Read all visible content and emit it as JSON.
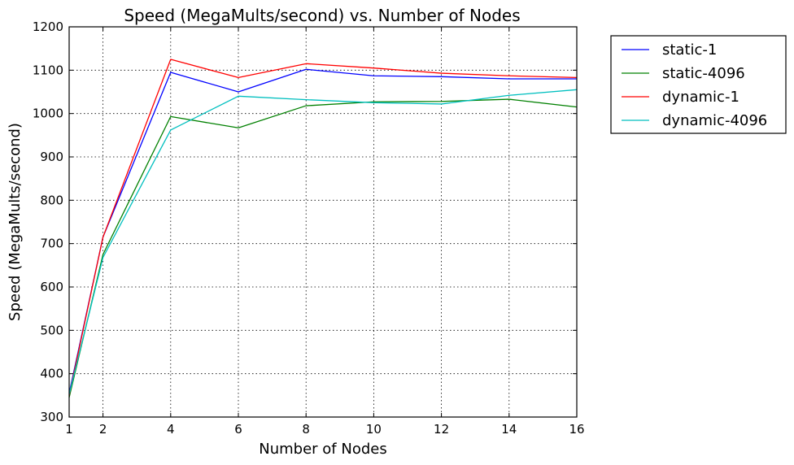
{
  "chart_data": {
    "type": "line",
    "title": "Speed (MegaMults/second) vs. Number of Nodes",
    "xlabel": "Number of Nodes",
    "ylabel": "Speed (MegaMults/second)",
    "x": [
      1,
      2,
      4,
      6,
      8,
      10,
      12,
      14,
      16
    ],
    "xlim": [
      1,
      16
    ],
    "ylim": [
      300,
      1200
    ],
    "xticks": [
      1,
      2,
      4,
      6,
      8,
      10,
      12,
      14,
      16
    ],
    "yticks": [
      300,
      400,
      500,
      600,
      700,
      800,
      900,
      1000,
      1100,
      1200
    ],
    "grid": true,
    "legend_position": "outside-right-top",
    "series": [
      {
        "name": "static-1",
        "color": "#0000ff",
        "values": [
          355,
          715,
          1095,
          1050,
          1102,
          1087,
          1085,
          1080,
          1080
        ]
      },
      {
        "name": "static-4096",
        "color": "#008000",
        "values": [
          345,
          675,
          993,
          967,
          1018,
          1027,
          1028,
          1033,
          1015
        ]
      },
      {
        "name": "dynamic-1",
        "color": "#ff0000",
        "values": [
          350,
          715,
          1125,
          1083,
          1115,
          1105,
          1093,
          1087,
          1083
        ]
      },
      {
        "name": "dynamic-4096",
        "color": "#00bfbf",
        "values": [
          352,
          668,
          962,
          1040,
          1032,
          1025,
          1022,
          1042,
          1055
        ]
      }
    ]
  }
}
